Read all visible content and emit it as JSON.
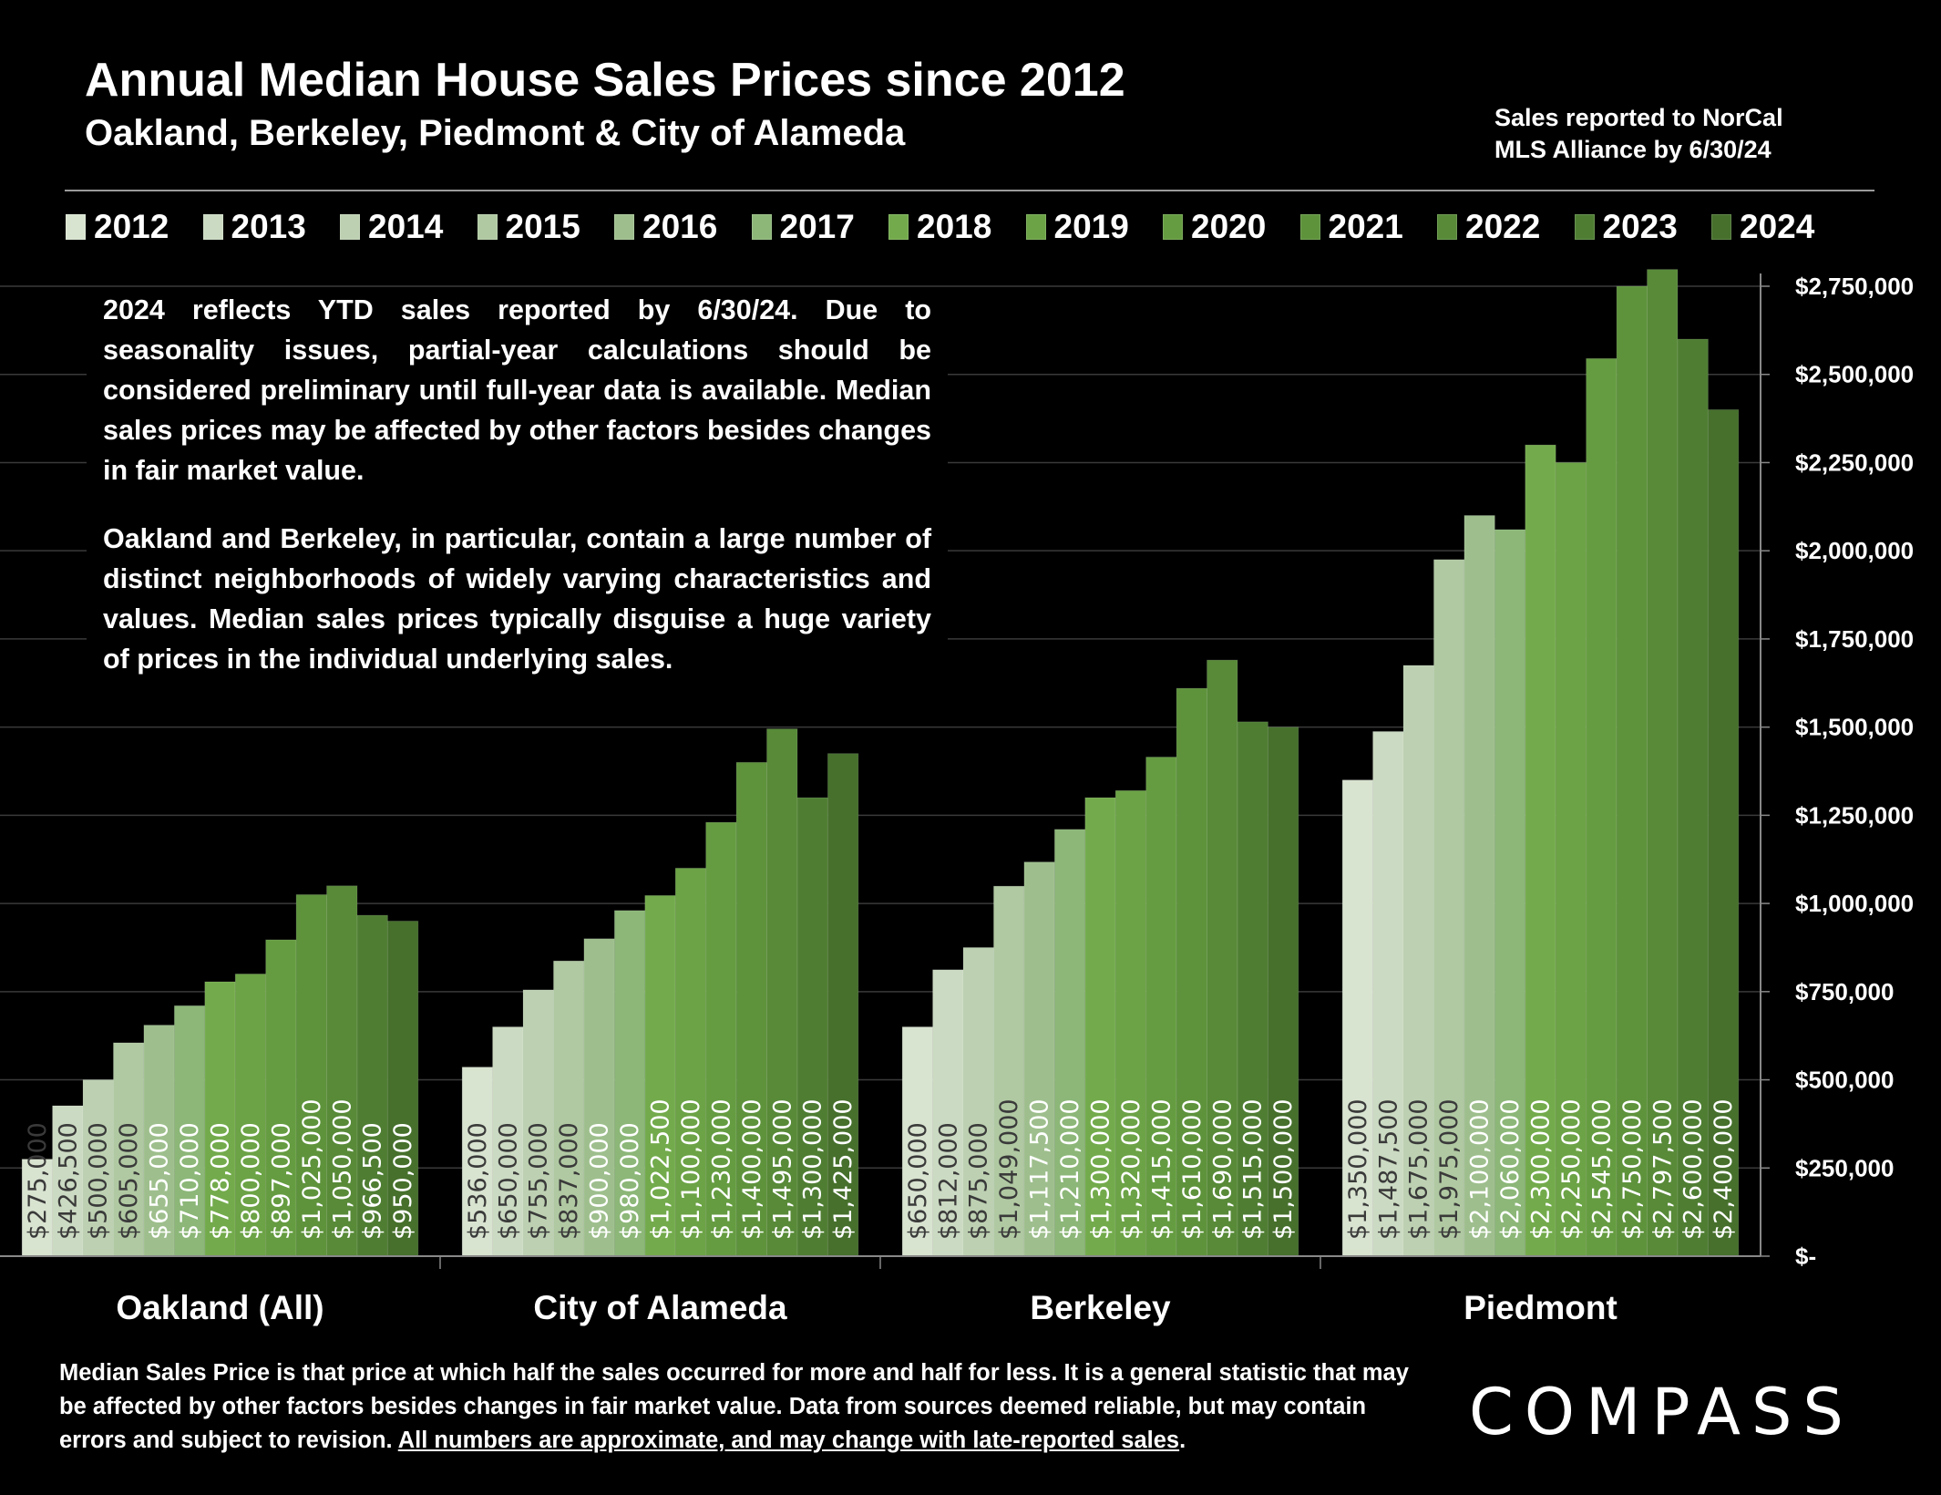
{
  "header": {
    "title": "Annual Median House Sales Prices since 2012",
    "subtitle": "Oakland, Berkeley, Piedmont & City of Alameda",
    "note_line1": "Sales reported to NorCal",
    "note_line2": "MLS Alliance by 6/30/24"
  },
  "textbox": {
    "para1": "2024 reflects YTD sales reported by 6/30/24. Due to seasonality issues, partial-year calculations should be considered preliminary until full-year data is available. Median sales prices may be affected by other factors besides changes in fair market value.",
    "para2": "Oakland and Berkeley, in particular, contain a large number of distinct neighborhoods of widely varying characteristics and values. Median sales prices typically disguise a huge variety of prices in the individual underlying sales."
  },
  "footer": {
    "text": "Median Sales Price is that price at which half the sales occurred for more and half for less. It is a general statistic that may be affected by other factors besides changes in fair market value. Data from sources deemed reliable, but may contain errors and subject to revision.",
    "underlined": "All numbers are approximate, and may change with late-reported sales",
    "period": "."
  },
  "logo": "COMPASS",
  "chart_data": {
    "type": "bar",
    "categories": [
      "Oakland (All)",
      "City of Alameda",
      "Berkeley",
      "Piedmont"
    ],
    "series": [
      {
        "name": "2012",
        "color": "#d8e3d0",
        "values": [
          275000,
          536000,
          650000,
          1350000
        ]
      },
      {
        "name": "2013",
        "color": "#cbdac2",
        "values": [
          426500,
          650000,
          812000,
          1487500
        ]
      },
      {
        "name": "2014",
        "color": "#bdd1b2",
        "values": [
          500000,
          755000,
          875000,
          1675000
        ]
      },
      {
        "name": "2015",
        "color": "#b0c9a2",
        "values": [
          605000,
          837000,
          1049000,
          1975000
        ]
      },
      {
        "name": "2016",
        "color": "#9ebf8d",
        "values": [
          655000,
          900000,
          1117500,
          2100000
        ]
      },
      {
        "name": "2017",
        "color": "#8cb778",
        "values": [
          710000,
          980000,
          1210000,
          2060000
        ]
      },
      {
        "name": "2018",
        "color": "#73ab4c",
        "values": [
          778000,
          1022500,
          1300000,
          2300000
        ]
      },
      {
        "name": "2019",
        "color": "#6ca346",
        "values": [
          800000,
          1100000,
          1320000,
          2250000
        ]
      },
      {
        "name": "2020",
        "color": "#659c41",
        "values": [
          897000,
          1230000,
          1415000,
          2545000
        ]
      },
      {
        "name": "2021",
        "color": "#5e933c",
        "values": [
          1025000,
          1400000,
          1610000,
          2750000
        ]
      },
      {
        "name": "2022",
        "color": "#588a38",
        "values": [
          1050000,
          1495000,
          1690000,
          2797500
        ]
      },
      {
        "name": "2023",
        "color": "#4f7e33",
        "values": [
          966500,
          1300000,
          1515000,
          2600000
        ]
      },
      {
        "name": "2024",
        "color": "#46702c",
        "values": [
          950000,
          1425000,
          1500000,
          2400000
        ]
      }
    ],
    "data_labels": [
      [
        "$275,000",
        "$536,000",
        "$650,000",
        "$1,350,000"
      ],
      [
        "$426,500",
        "$650,000",
        "$812,000",
        "$1,487,500"
      ],
      [
        "$500,000",
        "$755,000",
        "$875,000",
        "$1,675,000"
      ],
      [
        "$605,000",
        "$837,000",
        "$1,049,000",
        "$1,975,000"
      ],
      [
        "$655,000",
        "$900,000",
        "$1,117,500",
        "$2,100,000"
      ],
      [
        "$710,000",
        "$980,000",
        "$1,210,000",
        "$2,060,000"
      ],
      [
        "$778,000",
        "$1,022,500",
        "$1,300,000",
        "$2,300,000"
      ],
      [
        "$800,000",
        "$1,100,000",
        "$1,320,000",
        "$2,250,000"
      ],
      [
        "$897,000",
        "$1,230,000",
        "$1,415,000",
        "$2,545,000"
      ],
      [
        "$1,025,000",
        "$1,400,000",
        "$1,610,000",
        "$2,750,000"
      ],
      [
        "$1,050,000",
        "$1,495,000",
        "$1,690,000",
        "$2,797,500"
      ],
      [
        "$966,500",
        "$1,300,000",
        "$1,515,000",
        "$2,600,000"
      ],
      [
        "$950,000",
        "$1,425,000",
        "$1,500,000",
        "$2,400,000"
      ]
    ],
    "yticks": [
      0,
      250000,
      500000,
      750000,
      1000000,
      1250000,
      1500000,
      1750000,
      2000000,
      2250000,
      2500000,
      2750000
    ],
    "ytick_labels": [
      "$-",
      "$250,000",
      "$500,000",
      "$750,000",
      "$1,000,000",
      "$1,250,000",
      "$1,500,000",
      "$1,750,000",
      "$2,000,000",
      "$2,250,000",
      "$2,500,000",
      "$2,750,000"
    ],
    "ylim": [
      0,
      2750000
    ],
    "yaxis_side": "right",
    "grid": true,
    "legend": "top",
    "xlabel": "",
    "ylabel": ""
  }
}
